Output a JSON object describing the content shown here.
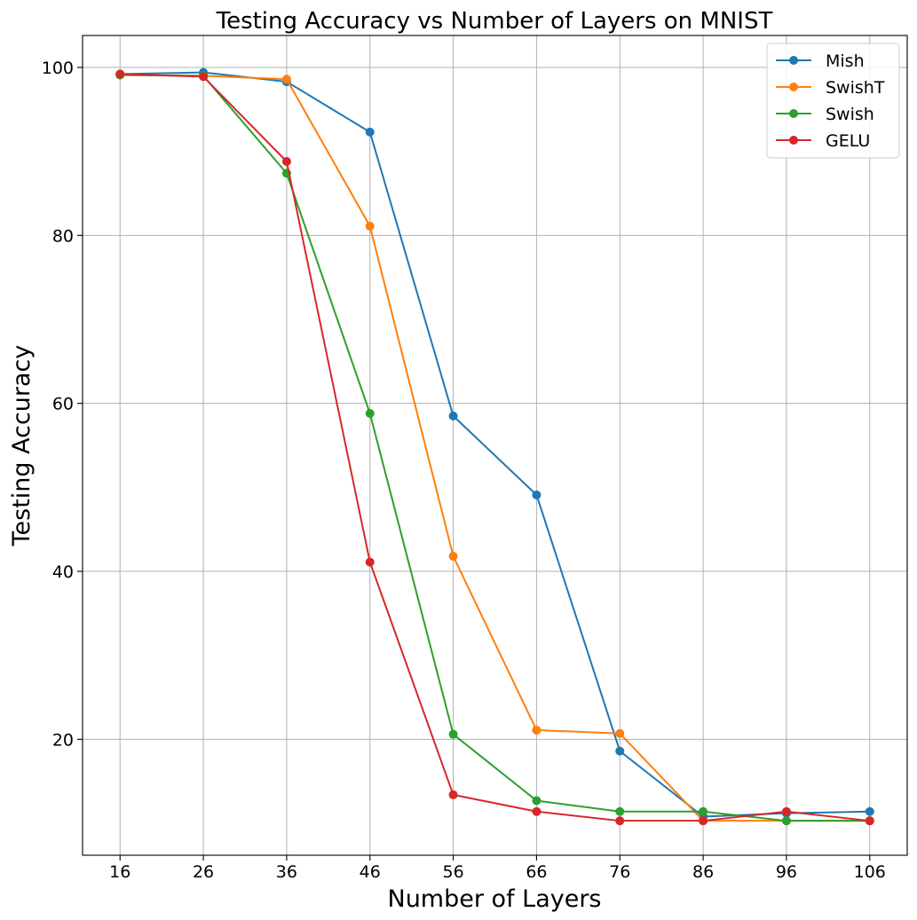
{
  "chart_data": {
    "type": "line",
    "title": "Testing Accuracy vs Number of Layers on MNIST",
    "xlabel": "Number of Layers",
    "ylabel": "Testing Accuracy",
    "x": [
      16,
      26,
      36,
      46,
      56,
      66,
      76,
      86,
      96,
      106
    ],
    "xlim": [
      11.5,
      110.5
    ],
    "ylim": [
      6.2,
      103.8
    ],
    "xticks": [
      "16",
      "26",
      "36",
      "46",
      "56",
      "66",
      "76",
      "86",
      "96",
      "106"
    ],
    "yticks": [
      {
        "value": 20,
        "label": "20"
      },
      {
        "value": 40,
        "label": "40"
      },
      {
        "value": 60,
        "label": "60"
      },
      {
        "value": 80,
        "label": "80"
      },
      {
        "value": 100,
        "label": "100"
      }
    ],
    "grid": true,
    "legend_position": "top-right",
    "series": [
      {
        "name": "Mish",
        "color": "#1f77b4",
        "values": [
          99.2,
          99.4,
          98.3,
          92.3,
          58.5,
          49.1,
          18.6,
          10.8,
          11.2,
          11.4
        ]
      },
      {
        "name": "SwishT",
        "color": "#ff7f0e",
        "values": [
          99.1,
          99.0,
          98.6,
          81.1,
          41.8,
          21.1,
          20.7,
          10.3,
          10.3,
          10.3
        ]
      },
      {
        "name": "Swish",
        "color": "#2ca02c",
        "values": [
          99.1,
          99.0,
          87.4,
          58.8,
          20.6,
          12.7,
          11.4,
          11.4,
          10.3,
          10.3
        ]
      },
      {
        "name": "GELU",
        "color": "#d62728",
        "values": [
          99.2,
          98.9,
          88.8,
          41.1,
          13.4,
          11.4,
          10.3,
          10.3,
          11.4,
          10.3
        ]
      }
    ]
  }
}
